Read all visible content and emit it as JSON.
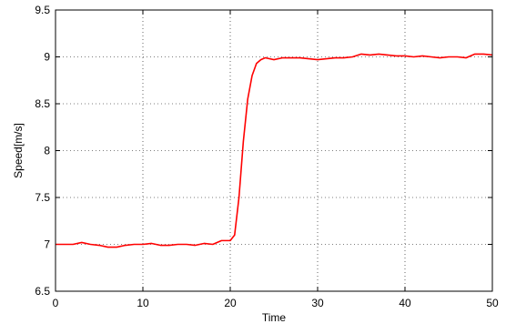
{
  "chart_data": {
    "type": "line",
    "title": "",
    "xlabel": "Time",
    "ylabel": "Speed[m/s]",
    "xlim": [
      0,
      50
    ],
    "ylim": [
      6.5,
      9.5
    ],
    "xticks": [
      0,
      10,
      20,
      30,
      40,
      50
    ],
    "xtick_labels": [
      "0",
      "10",
      "20",
      "30",
      "40",
      "50"
    ],
    "yticks": [
      6.5,
      7,
      7.5,
      8,
      8.5,
      9,
      9.5
    ],
    "ytick_labels": [
      "6.5",
      "7",
      "7.5",
      "8",
      "8.5",
      "9",
      "9.5"
    ],
    "grid": true,
    "legend": "none",
    "series": [
      {
        "color": "#ff0000",
        "x": [
          0,
          1,
          2,
          3,
          4,
          5,
          6,
          7,
          8,
          9,
          10,
          11,
          12,
          13,
          14,
          15,
          16,
          17,
          18,
          19,
          20,
          20.5,
          21,
          21.5,
          22,
          22.5,
          23,
          23.5,
          24,
          25,
          26,
          27,
          28,
          29,
          30,
          31,
          32,
          33,
          34,
          35,
          36,
          37,
          38,
          39,
          40,
          41,
          42,
          43,
          44,
          45,
          46,
          47,
          48,
          49,
          50
        ],
        "y": [
          7.0,
          7.0,
          7.0,
          7.02,
          7.0,
          6.99,
          6.97,
          6.97,
          6.99,
          7.0,
          7.0,
          7.01,
          6.99,
          6.99,
          7.0,
          7.0,
          6.99,
          7.01,
          7.0,
          7.04,
          7.04,
          7.1,
          7.5,
          8.1,
          8.55,
          8.8,
          8.93,
          8.97,
          8.99,
          8.97,
          8.99,
          8.99,
          8.99,
          8.98,
          8.97,
          8.98,
          8.99,
          8.99,
          9.0,
          9.03,
          9.02,
          9.03,
          9.02,
          9.01,
          9.01,
          9.0,
          9.01,
          9.0,
          8.99,
          9.0,
          9.0,
          8.99,
          9.03,
          9.03,
          9.02
        ]
      }
    ]
  }
}
